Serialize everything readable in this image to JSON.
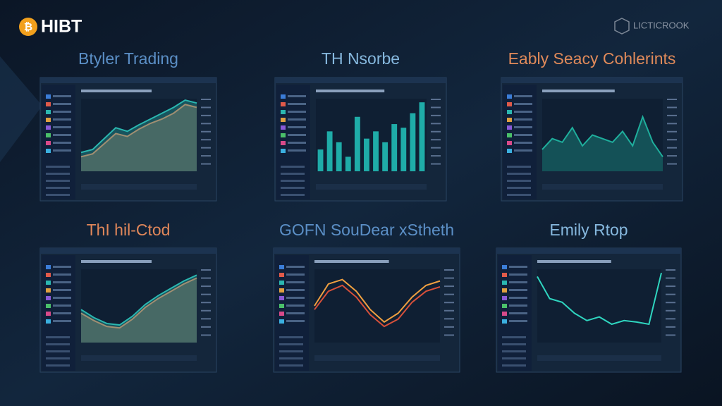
{
  "header": {
    "brand": "HIBT",
    "partner": "LICTICROOK"
  },
  "panels": [
    {
      "title": "Btyler Trading",
      "title_color": "#5b8fc6",
      "chart": {
        "type": "area",
        "ylim": [
          0,
          100
        ],
        "series": [
          {
            "color": "#e07a52",
            "values": [
              20,
              24,
              38,
              52,
              48,
              58,
              66,
              72,
              80,
              92,
              88
            ]
          },
          {
            "color": "#2bb7b0",
            "values": [
              26,
              30,
              45,
              60,
              55,
              64,
              72,
              80,
              88,
              98,
              94
            ]
          }
        ]
      }
    },
    {
      "title": "TH Nsorbe",
      "title_color": "#86b8de",
      "chart": {
        "type": "bar",
        "ylim": [
          0,
          100
        ],
        "series": [
          {
            "color": "#22c5bd",
            "values": [
              30,
              55,
              40,
              20,
              75,
              45,
              55,
              40,
              65,
              60,
              80,
              95
            ]
          }
        ]
      }
    },
    {
      "title": "Eably Seacy Cohlerints",
      "title_color": "#e08a5a",
      "chart": {
        "type": "area",
        "ylim": [
          0,
          100
        ],
        "series": [
          {
            "color": "#1fae9c",
            "values": [
              30,
              45,
              40,
              60,
              35,
              50,
              45,
              40,
              55,
              35,
              75,
              40,
              20
            ]
          }
        ]
      }
    },
    {
      "title": "ThI hil-Ctod",
      "title_color": "#e0875a",
      "chart": {
        "type": "area",
        "ylim": [
          0,
          100
        ],
        "series": [
          {
            "color": "#e07a52",
            "values": [
              40,
              30,
              22,
              20,
              32,
              48,
              60,
              70,
              80,
              88
            ]
          },
          {
            "color": "#2bb7b0",
            "values": [
              45,
              34,
              26,
              24,
              36,
              52,
              64,
              74,
              84,
              92
            ]
          }
        ]
      }
    },
    {
      "title": "GOFN SouDear xStheth",
      "title_color": "#5b8fc6",
      "chart": {
        "type": "line",
        "ylim": [
          0,
          100
        ],
        "series": [
          {
            "color": "#f0a040",
            "values": [
              50,
              80,
              86,
              70,
              45,
              28,
              40,
              62,
              78,
              84
            ]
          },
          {
            "color": "#d8503a",
            "values": [
              45,
              70,
              78,
              62,
              38,
              22,
              32,
              55,
              70,
              76
            ]
          }
        ]
      }
    },
    {
      "title": "Emily Rtop",
      "title_color": "#86b8de",
      "chart": {
        "type": "line",
        "ylim": [
          0,
          100
        ],
        "series": [
          {
            "color": "#2fd6c0",
            "values": [
              90,
              60,
              55,
              40,
              30,
              35,
              25,
              30,
              28,
              25,
              95
            ]
          }
        ]
      }
    }
  ]
}
